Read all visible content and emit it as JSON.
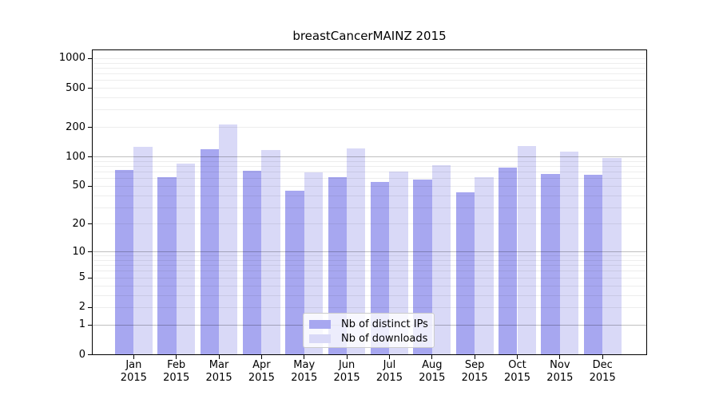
{
  "chart_data": {
    "type": "bar",
    "title": "breastCancerMAINZ 2015",
    "categories": [
      "Jan",
      "Feb",
      "Mar",
      "Apr",
      "May",
      "Jun",
      "Jul",
      "Aug",
      "Sep",
      "Oct",
      "Nov",
      "Dec"
    ],
    "x_tick_year": "2015",
    "series": [
      {
        "name": "Nb of distinct IPs",
        "color": "#a7a7f0",
        "values": [
          73,
          62,
          120,
          72,
          45,
          62,
          55,
          58,
          43,
          78,
          67,
          65
        ]
      },
      {
        "name": "Nb of downloads",
        "color": "#d9d9f7",
        "values": [
          127,
          85,
          213,
          117,
          70,
          122,
          71,
          82,
          62,
          128,
          113,
          97
        ]
      }
    ],
    "yscale": "log1p",
    "yticks": [
      0,
      1,
      2,
      5,
      10,
      20,
      50,
      100,
      200,
      500,
      1000
    ],
    "ylim": [
      0,
      1236
    ],
    "grid": {
      "orientation": "horizontal",
      "major_at": [
        1,
        10,
        100
      ],
      "minor_per_decade": [
        2,
        3,
        4,
        5,
        6,
        7,
        8,
        9
      ],
      "major_color": "rgba(0,0,0,0.25)",
      "minor_color": "rgba(0,0,0,0.07)"
    },
    "axis_color": "#000000",
    "legend_position": "lower-center-inside"
  }
}
